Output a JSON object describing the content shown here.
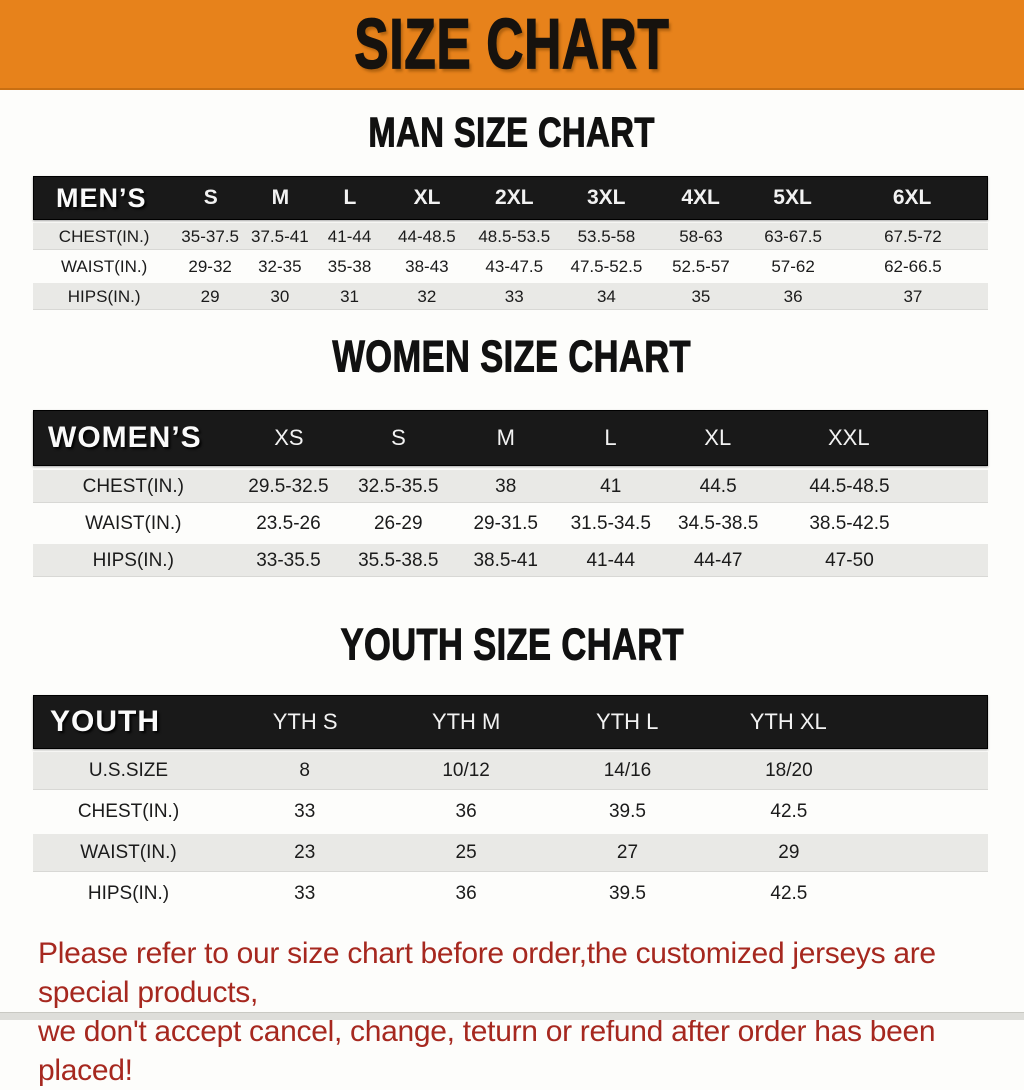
{
  "banner": {
    "title": "SIZE CHART"
  },
  "colors": {
    "banner_bg": "#e7821b",
    "table_header_bg": "#191919",
    "row_alt_bg": "#e9e9e6",
    "footer_text": "#a6281f"
  },
  "footer": {
    "line1": "Please refer to our size chart before order,the customized jerseys are special products,",
    "line2": "we don't accept cancel, change, teturn or refund after order has been placed!"
  },
  "chart_data": [
    {
      "type": "table",
      "title": "MAN SIZE CHART",
      "corner_label": "MEN’S",
      "columns": [
        "S",
        "M",
        "L",
        "XL",
        "2XL",
        "3XL",
        "4XL",
        "5XL",
        "6XL"
      ],
      "rows": [
        {
          "label": "CHEST(IN.)",
          "values": [
            "35-37.5",
            "37.5-41",
            "41-44",
            "44-48.5",
            "48.5-53.5",
            "53.5-58",
            "58-63",
            "63-67.5",
            "67.5-72"
          ]
        },
        {
          "label": "WAIST(IN.)",
          "values": [
            "29-32",
            "32-35",
            "35-38",
            "38-43",
            "43-47.5",
            "47.5-52.5",
            "52.5-57",
            "57-62",
            "62-66.5"
          ]
        },
        {
          "label": "HIPS(IN.)",
          "values": [
            "29",
            "30",
            "31",
            "32",
            "33",
            "34",
            "35",
            "36",
            "37"
          ]
        }
      ]
    },
    {
      "type": "table",
      "title": "WOMEN SIZE CHART",
      "corner_label": "WOMEN’S",
      "columns": [
        "XS",
        "S",
        "M",
        "L",
        "XL",
        "XXL"
      ],
      "rows": [
        {
          "label": "CHEST(IN.)",
          "values": [
            "29.5-32.5",
            "32.5-35.5",
            "38",
            "41",
            "44.5",
            "44.5-48.5"
          ]
        },
        {
          "label": "WAIST(IN.)",
          "values": [
            "23.5-26",
            "26-29",
            "29-31.5",
            "31.5-34.5",
            "34.5-38.5",
            "38.5-42.5"
          ]
        },
        {
          "label": "HIPS(IN.)",
          "values": [
            "33-35.5",
            "35.5-38.5",
            "38.5-41",
            "41-44",
            "44-47",
            "47-50"
          ]
        }
      ]
    },
    {
      "type": "table",
      "title": "YOUTH SIZE CHART",
      "corner_label": "YOUTH",
      "columns": [
        "YTH S",
        "YTH M",
        "YTH L",
        "YTH XL"
      ],
      "rows": [
        {
          "label": "U.S.SIZE",
          "values": [
            "8",
            "10/12",
            "14/16",
            "18/20"
          ]
        },
        {
          "label": "CHEST(IN.)",
          "values": [
            "33",
            "36",
            "39.5",
            "42.5"
          ]
        },
        {
          "label": "WAIST(IN.)",
          "values": [
            "23",
            "25",
            "27",
            "29"
          ]
        },
        {
          "label": "HIPS(IN.)",
          "values": [
            "33",
            "36",
            "39.5",
            "42.5"
          ]
        }
      ]
    }
  ]
}
